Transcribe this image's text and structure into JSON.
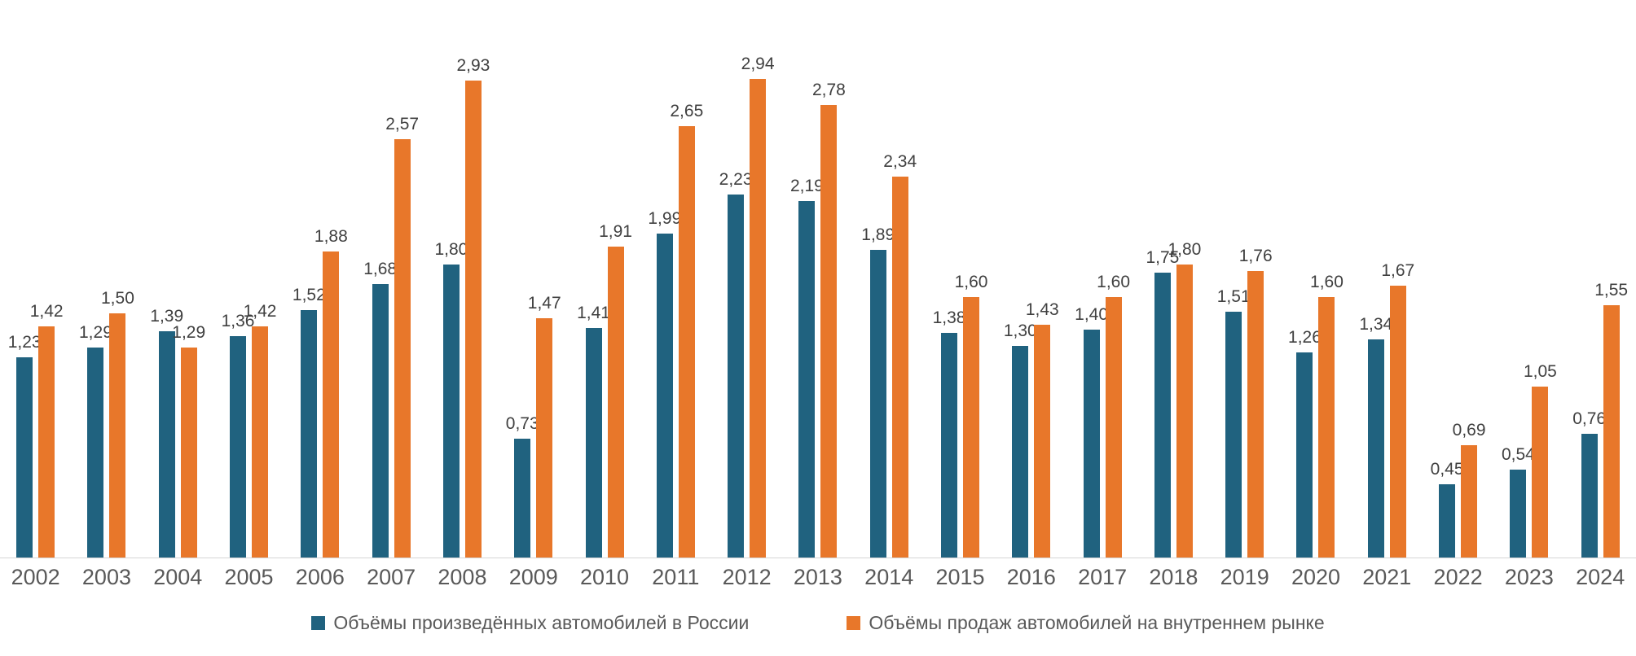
{
  "chart_data": {
    "type": "bar",
    "title": "",
    "xlabel": "",
    "ylabel": "",
    "categories": [
      "2002",
      "2003",
      "2004",
      "2005",
      "2006",
      "2007",
      "2008",
      "2009",
      "2010",
      "2011",
      "2012",
      "2013",
      "2014",
      "2015",
      "2016",
      "2017",
      "2018",
      "2019",
      "2020",
      "2021",
      "2022",
      "2023",
      "2024"
    ],
    "series": [
      {
        "name": "Объёмы произведённых автомобилей в России",
        "color": "#20627f",
        "values": [
          1.23,
          1.29,
          1.39,
          1.36,
          1.52,
          1.68,
          1.8,
          0.73,
          1.41,
          1.99,
          2.23,
          2.19,
          1.89,
          1.38,
          1.3,
          1.4,
          1.75,
          1.51,
          1.26,
          1.34,
          0.45,
          0.54,
          0.76
        ]
      },
      {
        "name": "Объёмы продаж автомобилей на внутреннем рынке",
        "color": "#e8772a",
        "values": [
          1.42,
          1.5,
          1.29,
          1.42,
          1.88,
          2.57,
          2.93,
          1.47,
          1.91,
          2.65,
          2.94,
          2.78,
          2.34,
          1.6,
          1.43,
          1.6,
          1.8,
          1.76,
          1.6,
          1.67,
          0.69,
          1.05,
          1.55
        ]
      }
    ],
    "value_label_decimal_separator": ",",
    "ylim": [
      0,
      3.2
    ],
    "grid": false,
    "legend_position": "bottom",
    "axis_line_color": "#d6d6d6",
    "value_label_color": "#404040",
    "category_label_color": "#595959"
  }
}
